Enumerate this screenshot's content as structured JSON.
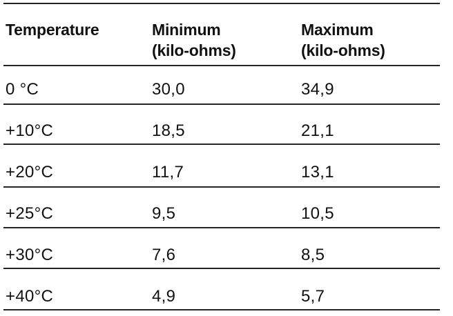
{
  "table": {
    "headers": [
      {
        "line1": "Temperature",
        "line2": ""
      },
      {
        "line1": "Minimum",
        "line2": "(kilo-ohms)"
      },
      {
        "line1": "Maximum",
        "line2": "(kilo-ohms)"
      }
    ],
    "rows": [
      {
        "temperature": "0 °C",
        "minimum": "30,0",
        "maximum": "34,9"
      },
      {
        "temperature": "+10°C",
        "minimum": "18,5",
        "maximum": "21,1"
      },
      {
        "temperature": "+20°C",
        "minimum": "11,7",
        "maximum": "13,1"
      },
      {
        "temperature": "+25°C",
        "minimum": "9,5",
        "maximum": "10,5"
      },
      {
        "temperature": "+30°C",
        "minimum": "7,6",
        "maximum": "8,5"
      },
      {
        "temperature": "+40°C",
        "minimum": "4,9",
        "maximum": "5,7"
      }
    ]
  }
}
